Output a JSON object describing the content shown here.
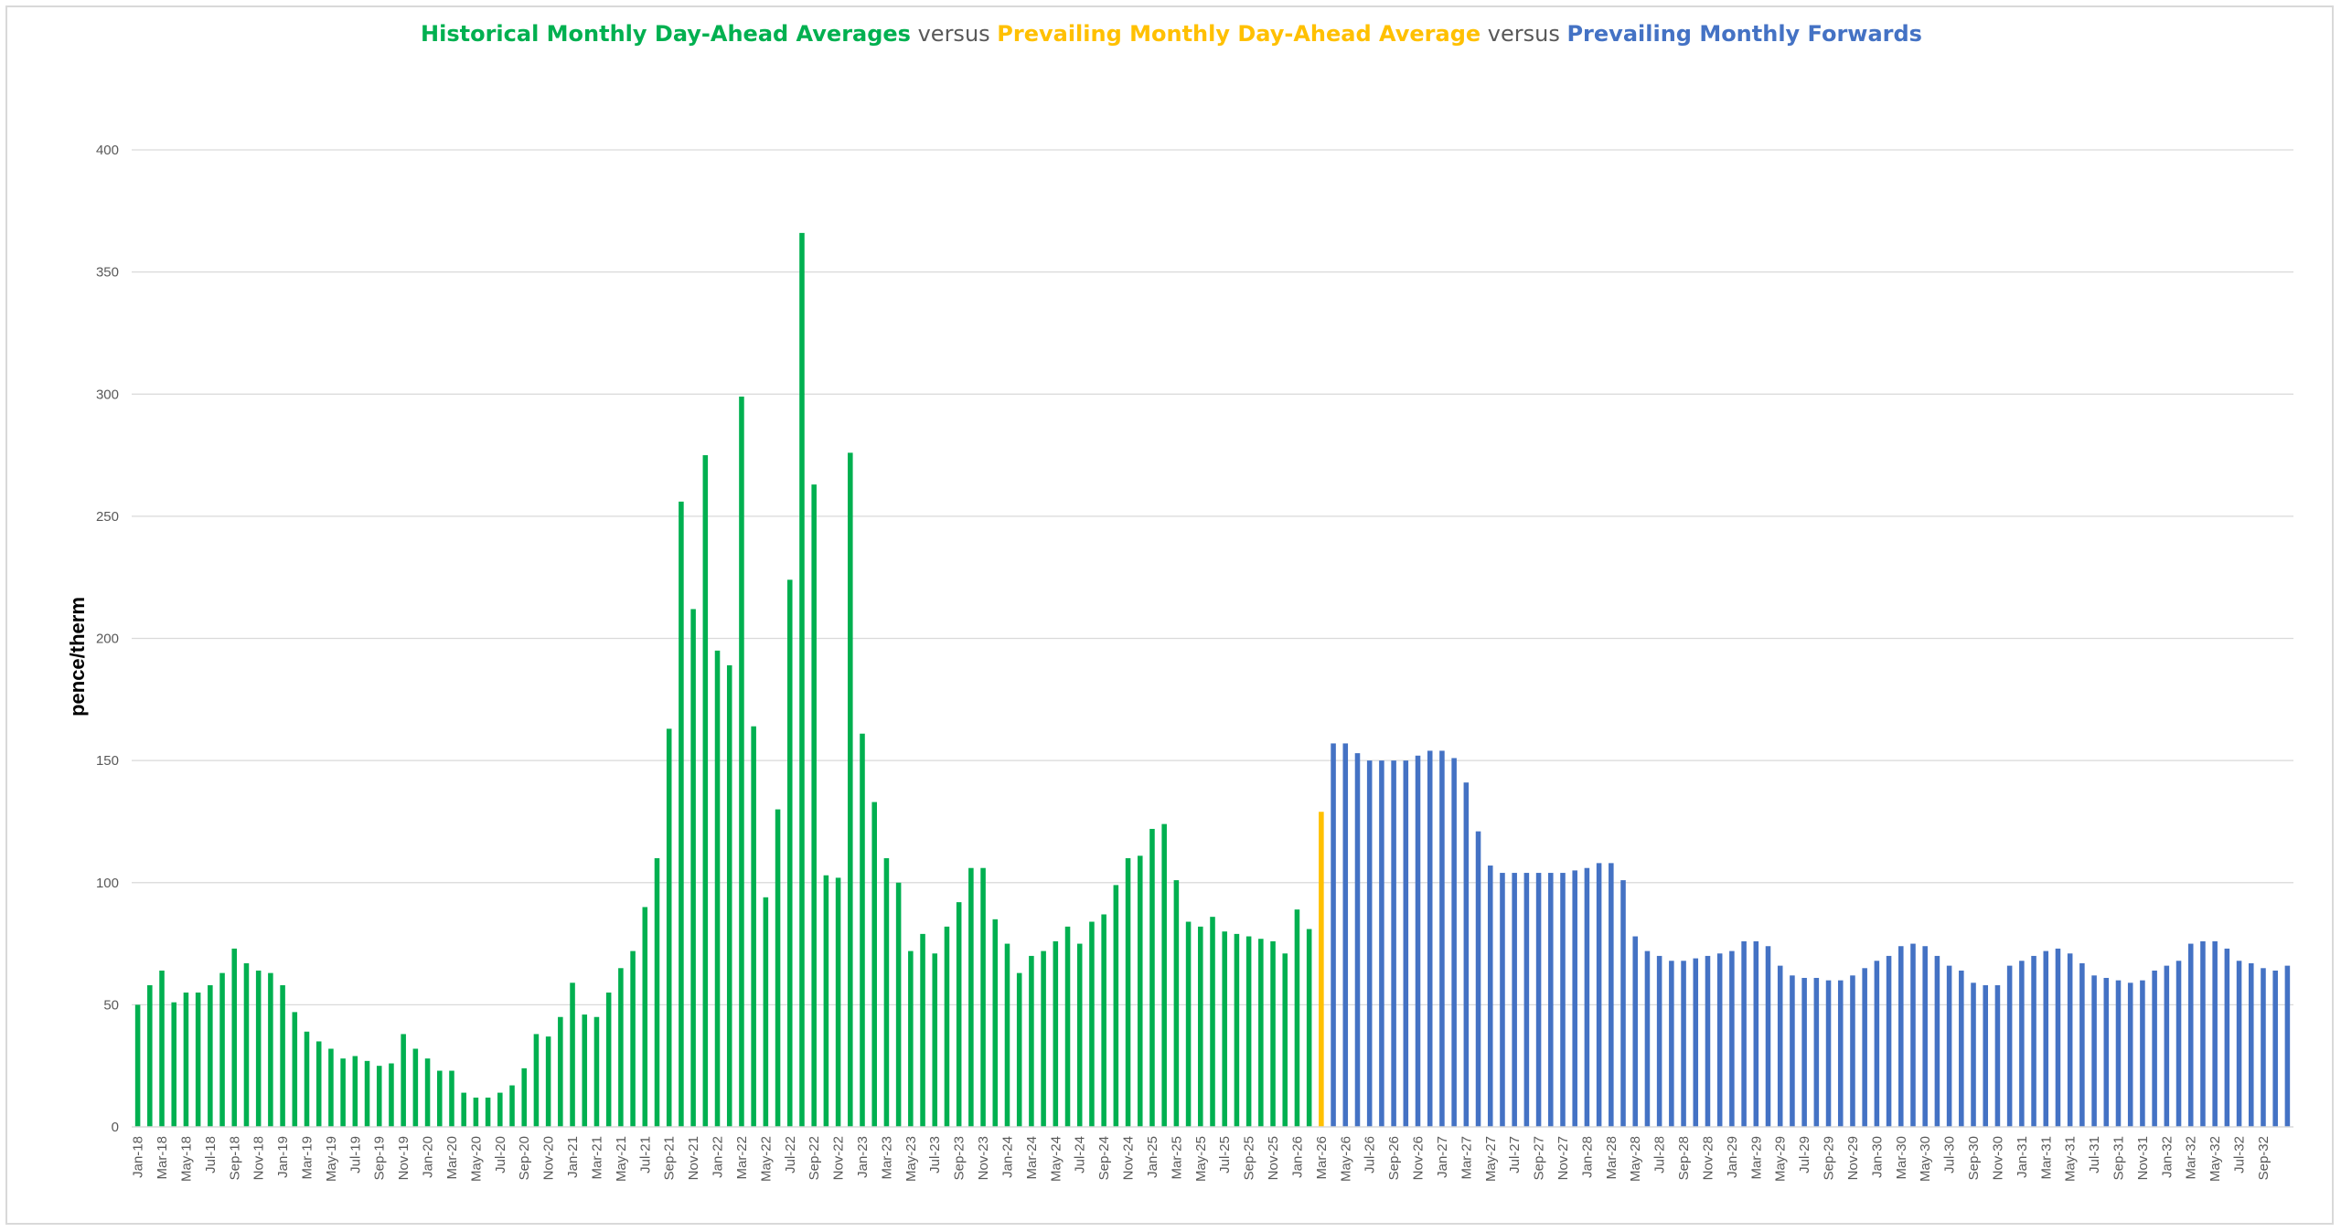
{
  "chart_data": {
    "type": "bar",
    "title_parts": [
      {
        "text": "Historical Monthly Day-Ahead Averages",
        "color": "#00b050",
        "bold": true
      },
      {
        "text": " versus ",
        "color": "#595959",
        "bold": false
      },
      {
        "text": "Prevailing Monthly Day-Ahead Average",
        "color": "#ffc000",
        "bold": true
      },
      {
        "text": " versus ",
        "color": "#595959",
        "bold": false
      },
      {
        "text": "Prevailing Monthly Forwards",
        "color": "#4472c4",
        "bold": true
      }
    ],
    "ylabel": "pence/therm",
    "xlabel": "",
    "ylim": [
      0,
      400
    ],
    "yticks": [
      0,
      50,
      100,
      150,
      200,
      250,
      300,
      350,
      400
    ],
    "grid": true,
    "start_month": "Jan-18",
    "month_labels_every": 2,
    "series": [
      {
        "name": "Historical Monthly Day-Ahead Averages",
        "color": "#00b050",
        "values": [
          50,
          58,
          64,
          51,
          55,
          55,
          58,
          63,
          73,
          67,
          64,
          63,
          58,
          47,
          39,
          35,
          32,
          28,
          29,
          27,
          25,
          26,
          38,
          32,
          28,
          23,
          23,
          14,
          12,
          12,
          14,
          17,
          24,
          38,
          37,
          45,
          59,
          46,
          45,
          55,
          65,
          72,
          90,
          110,
          163,
          256,
          212,
          275,
          195,
          189,
          299,
          164,
          94,
          130,
          224,
          366,
          263,
          103,
          102,
          276,
          161,
          133,
          110,
          100,
          72,
          79,
          71,
          82,
          92,
          106,
          106,
          85,
          75,
          63,
          70,
          72,
          76,
          82,
          75,
          84,
          87,
          99,
          110,
          111,
          122,
          124,
          101,
          84,
          82,
          86,
          80,
          79,
          78,
          77,
          76,
          71,
          89,
          81
        ]
      },
      {
        "name": "Prevailing Monthly Day-Ahead Average",
        "color": "#ffc000",
        "values": [
          129
        ]
      },
      {
        "name": "Prevailing Monthly Forwards",
        "color": "#4472c4",
        "values": [
          157,
          157,
          153,
          150,
          150,
          150,
          150,
          152,
          154,
          154,
          151,
          141,
          121,
          107,
          104,
          104,
          104,
          104,
          104,
          104,
          105,
          106,
          108,
          108,
          101,
          78,
          72,
          70,
          68,
          68,
          69,
          70,
          71,
          72,
          76,
          76,
          74,
          66,
          62,
          61,
          61,
          60,
          60,
          62,
          65,
          68,
          70,
          74,
          75,
          74,
          70,
          66,
          64,
          59,
          58,
          58,
          66,
          68,
          70,
          72,
          73,
          71,
          67,
          62,
          61,
          60,
          59,
          60,
          64,
          66,
          68,
          75,
          76,
          76,
          73,
          68,
          67,
          65,
          64,
          66
        ]
      }
    ],
    "x_tick_labels": [
      "Jan-18",
      "Mar-18",
      "May-18",
      "Jul-18",
      "Sep-18",
      "Nov-18",
      "Jan-19",
      "Mar-19",
      "May-19",
      "Jul-19",
      "Sep-19",
      "Nov-19",
      "Jan-20",
      "Mar-20",
      "May-20",
      "Jul-20",
      "Sep-20",
      "Nov-20",
      "Jan-21",
      "Mar-21",
      "May-21",
      "Jul-21",
      "Sep-21",
      "Nov-21",
      "Jan-22",
      "Mar-22",
      "May-22",
      "Jul-22",
      "Sep-22",
      "Nov-22",
      "Jan-23",
      "Mar-23",
      "May-23",
      "Jul-23",
      "Sep-23",
      "Nov-23",
      "Jan-24",
      "Mar-24",
      "May-24",
      "Jul-24",
      "Sep-24",
      "Nov-24",
      "Jan-25",
      "Mar-25",
      "May-25",
      "Jul-25",
      "Sep-25",
      "Nov-25",
      "Jan-26",
      "Mar-26",
      "May-26",
      "Jul-26",
      "Sep-26",
      "Nov-26",
      "Jan-27",
      "Mar-27",
      "May-27",
      "Jul-27",
      "Sep-27",
      "Nov-27",
      "Jan-28",
      "Mar-28",
      "May-28",
      "Jul-28",
      "Sep-28",
      "Nov-28",
      "Jan-29",
      "Mar-29",
      "May-29",
      "Jul-29",
      "Sep-29",
      "Nov-29",
      "Jan-30",
      "Mar-30",
      "May-30",
      "Jul-30",
      "Sep-30",
      "Nov-30",
      "Jan-31",
      "Mar-31",
      "May-31",
      "Jul-31",
      "Sep-31",
      "Nov-31",
      "Jan-32",
      "Mar-32",
      "May-32",
      "Jul-32",
      "Sep-32"
    ]
  }
}
